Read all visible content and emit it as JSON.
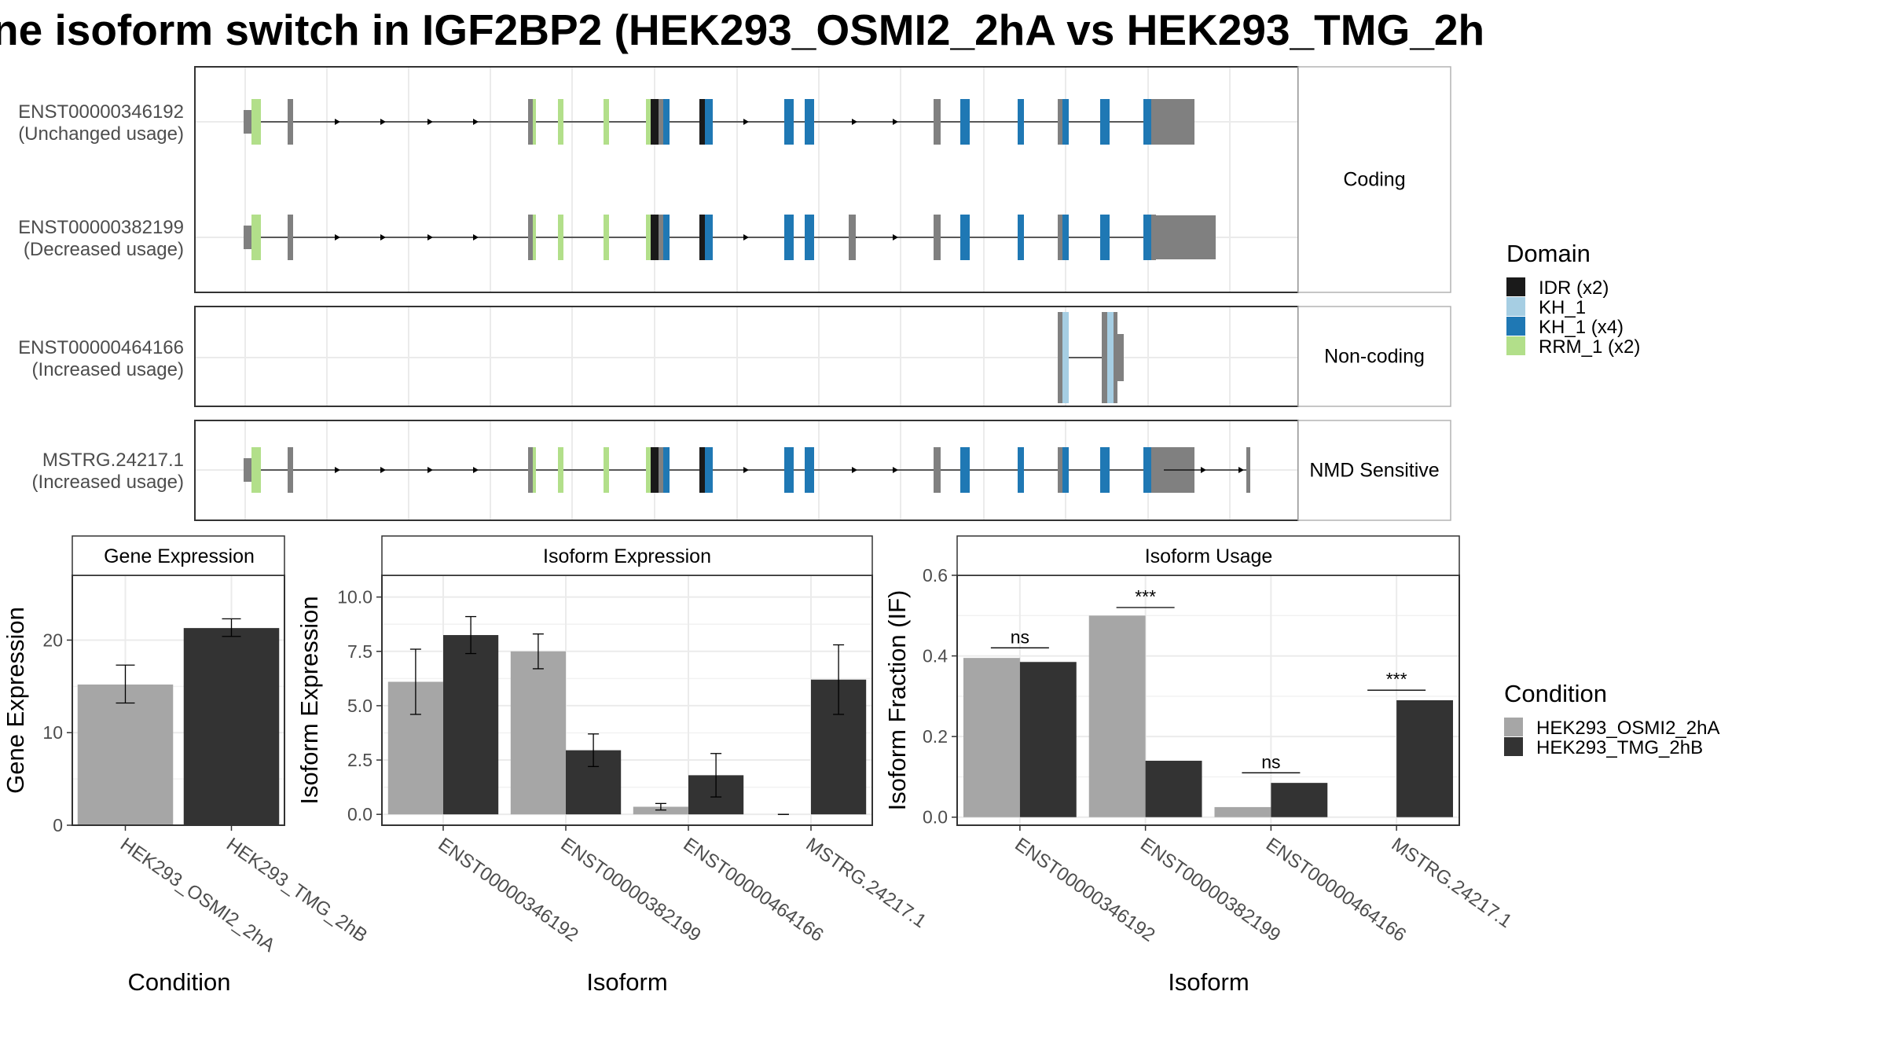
{
  "title": "ne isoform switch in IGF2BP2 (HEK293_OSMI2_2hA vs HEK293_TMG_2h",
  "colors": {
    "exon": "#808080",
    "IDR": "#1a1a1a",
    "KH_1_light": "#a6cee3",
    "KH_1": "#1f78b4",
    "RRM_1": "#b2df8a",
    "cond1": "#a6a6a6",
    "cond2": "#333333",
    "panel_border": "#333333",
    "grid": "#ebebeb"
  },
  "transcripts": {
    "groups": [
      {
        "name": "Coding",
        "rows": [
          {
            "id": "ENST00000346192",
            "usage": "(Unchanged usage)",
            "variant": "full",
            "utr3": "short"
          },
          {
            "id": "ENST00000382199",
            "usage": "(Decreased usage)",
            "variant": "full_extra",
            "utr3": "long"
          }
        ]
      },
      {
        "name": "Non-coding",
        "rows": [
          {
            "id": "ENST00000464166",
            "usage": "(Increased usage)",
            "variant": "partial"
          }
        ]
      },
      {
        "name": "NMD Sensitive",
        "rows": [
          {
            "id": "MSTRG.24217.1",
            "usage": "(Increased usage)",
            "variant": "nmd"
          }
        ]
      }
    ]
  },
  "legend_domain": {
    "title": "Domain",
    "items": [
      {
        "label": "IDR (x2)",
        "color": "#1a1a1a"
      },
      {
        "label": "KH_1",
        "color": "#a6cee3"
      },
      {
        "label": "KH_1 (x4)",
        "color": "#1f78b4"
      },
      {
        "label": "RRM_1 (x2)",
        "color": "#b2df8a"
      }
    ]
  },
  "legend_condition": {
    "title": "Condition",
    "items": [
      {
        "label": "HEK293_OSMI2_2hA",
        "color": "#a6a6a6"
      },
      {
        "label": "HEK293_TMG_2hB",
        "color": "#333333"
      }
    ]
  },
  "chart_data": [
    {
      "type": "bar",
      "title": "Gene Expression",
      "xlabel": "Condition",
      "ylabel": "Gene Expression",
      "categories": [
        "HEK293_OSMI2_2hA",
        "HEK293_TMG_2hB"
      ],
      "values": [
        15.2,
        21.3
      ],
      "errors": [
        [
          13.2,
          17.3
        ],
        [
          20.4,
          22.3
        ]
      ],
      "ylim": [
        0,
        27
      ],
      "yticks": [
        0,
        10,
        20
      ]
    },
    {
      "type": "bar",
      "title": "Isoform Expression",
      "xlabel": "Isoform",
      "ylabel": "Isoform Expression",
      "categories": [
        "ENST00000346192",
        "ENST00000382199",
        "ENST00000464166",
        "MSTRG.24217.1"
      ],
      "series": [
        {
          "name": "HEK293_OSMI2_2hA",
          "values": [
            6.1,
            7.5,
            0.35,
            0.0
          ],
          "errors": [
            [
              4.6,
              7.6
            ],
            [
              6.7,
              8.3
            ],
            [
              0.2,
              0.5
            ],
            [
              0.0,
              0.0
            ]
          ]
        },
        {
          "name": "HEK293_TMG_2hB",
          "values": [
            8.25,
            2.95,
            1.8,
            6.2
          ],
          "errors": [
            [
              7.4,
              9.1
            ],
            [
              2.2,
              3.7
            ],
            [
              0.8,
              2.8
            ],
            [
              4.6,
              7.8
            ]
          ]
        }
      ],
      "ylim": [
        -0.5,
        11
      ],
      "yticks": [
        "0.0",
        "2.5",
        "5.0",
        "7.5",
        "10.0"
      ]
    },
    {
      "type": "bar",
      "title": "Isoform Usage",
      "xlabel": "Isoform",
      "ylabel": "Isoform Fraction (IF)",
      "categories": [
        "ENST00000346192",
        "ENST00000382199",
        "ENST00000464166",
        "MSTRG.24217.1"
      ],
      "series": [
        {
          "name": "HEK293_OSMI2_2hA",
          "values": [
            0.395,
            0.5,
            0.025,
            0.0
          ]
        },
        {
          "name": "HEK293_TMG_2hB",
          "values": [
            0.385,
            0.14,
            0.085,
            0.29
          ]
        }
      ],
      "significance": [
        "ns",
        "***",
        "ns",
        "***"
      ],
      "sig_y": [
        0.42,
        0.52,
        0.11,
        0.315
      ],
      "ylim": [
        -0.02,
        0.6
      ],
      "yticks": [
        "0.0",
        "0.2",
        "0.4",
        "0.6"
      ]
    }
  ]
}
